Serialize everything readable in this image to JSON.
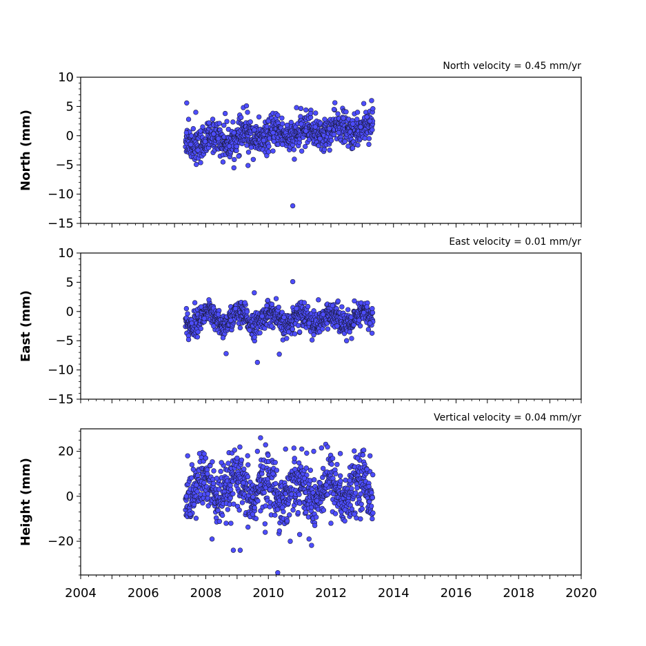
{
  "chart_data": [
    {
      "type": "scatter",
      "title": "North velocity = 0.45 mm/yr",
      "xlabel": "",
      "ylabel": "North (mm)",
      "xlim": [
        2004,
        2020
      ],
      "ylim": [
        -15,
        10
      ],
      "yticks": [
        10,
        5,
        0,
        -5,
        -10,
        -15
      ],
      "ytick_labels": [
        "10",
        "5",
        "0",
        "−5",
        "−10",
        "−15"
      ],
      "xtick_labels_shown": false,
      "grid": false,
      "marker_color": "#4d4dff",
      "marker_edge": "#1a1a3a",
      "series": [
        {
          "x": [
            2007.38,
            2007.39,
            2007.45,
            2007.52,
            2007.6,
            2007.68,
            2007.75,
            2007.83,
            2007.9,
            2007.98,
            2008.1,
            2008.25,
            2008.4,
            2008.55,
            2008.62,
            2008.75,
            2008.9,
            2009.05,
            2009.2,
            2009.3,
            2009.35,
            2009.45,
            2009.55,
            2009.7,
            2009.85,
            2010.0,
            2010.15,
            2010.3,
            2010.45,
            2010.6,
            2010.78,
            2010.9,
            2011.05,
            2011.2,
            2011.35,
            2011.5,
            2011.65,
            2011.8,
            2011.95,
            2012.1,
            2012.25,
            2012.4,
            2012.55,
            2012.7,
            2012.85,
            2012.95,
            2013.05,
            2013.15,
            2013.25,
            2013.3,
            2013.32
          ],
          "y": [
            0.5,
            5.6,
            2.8,
            -1.5,
            1.2,
            4.0,
            -2.5,
            0.8,
            1.5,
            -1.0,
            2.2,
            0.3,
            -0.5,
            -4.5,
            3.8,
            -1.8,
            0.5,
            -3.5,
            4.8,
            5.1,
            -5.1,
            -2.0,
            1.0,
            3.2,
            -0.8,
            2.5,
            0.5,
            3.5,
            -1.5,
            1.8,
            -12.0,
            4.8,
            2.0,
            0.8,
            3.8,
            1.5,
            -0.5,
            2.8,
            1.2,
            4.5,
            0.5,
            3.0,
            -1.8,
            2.0,
            4.0,
            1.5,
            5.5,
            3.2,
            2.5,
            6.0,
            1.0
          ]
        }
      ]
    },
    {
      "type": "scatter",
      "title": "East velocity = 0.01 mm/yr",
      "xlabel": "",
      "ylabel": "East (mm)",
      "xlim": [
        2004,
        2020
      ],
      "ylim": [
        -15,
        10
      ],
      "yticks": [
        10,
        5,
        0,
        -5,
        -10,
        -15
      ],
      "ytick_labels": [
        "10",
        "5",
        "0",
        "−5",
        "−10",
        "−15"
      ],
      "xtick_labels_shown": false,
      "grid": false,
      "marker_color": "#4d4dff",
      "marker_edge": "#1a1a3a",
      "series": [
        {
          "x": [
            2007.38,
            2007.45,
            2007.55,
            2007.65,
            2007.75,
            2007.85,
            2007.95,
            2008.1,
            2008.25,
            2008.4,
            2008.55,
            2008.65,
            2008.8,
            2008.95,
            2009.1,
            2009.25,
            2009.4,
            2009.55,
            2009.65,
            2009.8,
            2009.95,
            2010.1,
            2010.25,
            2010.35,
            2010.5,
            2010.65,
            2010.78,
            2010.9,
            2011.0,
            2011.15,
            2011.3,
            2011.45,
            2011.6,
            2011.75,
            2011.9,
            2012.05,
            2012.2,
            2012.35,
            2012.5,
            2012.6,
            2012.75,
            2012.9,
            2013.05,
            2013.15,
            2013.25,
            2013.32
          ],
          "y": [
            0.5,
            -4.8,
            -2.0,
            1.5,
            -3.5,
            0.8,
            -1.2,
            2.0,
            -2.5,
            -0.5,
            -4.5,
            -7.2,
            -1.5,
            0.5,
            -2.8,
            1.5,
            -3.2,
            3.2,
            -8.7,
            -0.8,
            1.0,
            -2.5,
            2.2,
            -7.3,
            -1.0,
            -3.5,
            5.1,
            0.5,
            -3.5,
            1.5,
            -2.0,
            -4.0,
            2.0,
            -0.5,
            -3.0,
            1.0,
            -2.5,
            0.8,
            -5.0,
            -3.5,
            1.8,
            -1.5,
            -0.2,
            0.8,
            -2.0,
            0.5
          ]
        }
      ]
    },
    {
      "type": "scatter",
      "title": "Vertical velocity = 0.04 mm/yr",
      "xlabel": "",
      "ylabel": "Height (mm)",
      "xlim": [
        2004,
        2020
      ],
      "ylim": [
        -35,
        30
      ],
      "yticks": [
        20,
        0,
        -20
      ],
      "ytick_labels": [
        "20",
        "0",
        "−20"
      ],
      "xticks": [
        2004,
        2006,
        2008,
        2010,
        2012,
        2014,
        2016,
        2018,
        2020
      ],
      "xtick_labels": [
        "2004",
        "2006",
        "2008",
        "2010",
        "2012",
        "2014",
        "2016",
        "2018",
        "2020"
      ],
      "grid": false,
      "marker_color": "#4d4dff",
      "marker_edge": "#1a1a3a",
      "series": [
        {
          "x": [
            2007.38,
            2007.42,
            2007.5,
            2007.6,
            2007.7,
            2007.8,
            2007.9,
            2008.05,
            2008.2,
            2008.35,
            2008.5,
            2008.65,
            2008.8,
            2008.88,
            2009.0,
            2009.1,
            2009.2,
            2009.35,
            2009.5,
            2009.65,
            2009.75,
            2009.9,
            2010.05,
            2010.15,
            2010.3,
            2010.45,
            2010.55,
            2010.7,
            2010.85,
            2011.0,
            2011.15,
            2011.3,
            2011.45,
            2011.55,
            2011.7,
            2011.85,
            2012.0,
            2012.15,
            2012.3,
            2012.45,
            2012.6,
            2012.75,
            2012.85,
            2012.95,
            2013.05,
            2013.15,
            2013.25,
            2013.32
          ],
          "y": [
            0.0,
            18.0,
            -8.0,
            12.0,
            5.0,
            19.0,
            -3.0,
            10.0,
            -19.0,
            8.0,
            15.0,
            -12.0,
            3.0,
            -24.0,
            17.0,
            -24.0,
            6.0,
            14.0,
            -8.0,
            20.0,
            26.0,
            -16.0,
            3.0,
            10.0,
            -34.0,
            -5.0,
            21.0,
            -20.0,
            12.0,
            -17.0,
            8.0,
            -19.0,
            20.0,
            -2.0,
            21.5,
            5.0,
            -12.0,
            10.0,
            19.0,
            -6.0,
            7.0,
            -8.0,
            17.0,
            1.0,
            20.5,
            12.0,
            18.0,
            -10.0
          ]
        }
      ]
    }
  ]
}
